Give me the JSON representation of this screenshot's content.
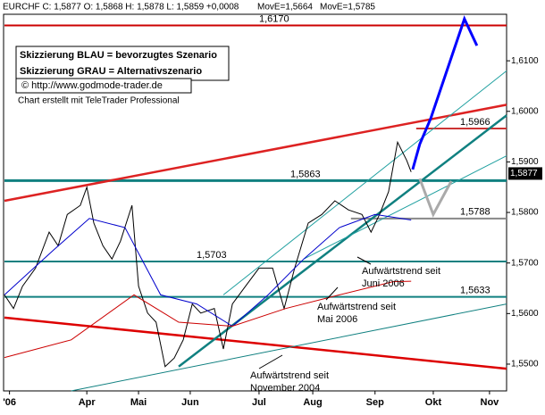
{
  "chart_data": {
    "type": "line",
    "header": {
      "symbol": "EURCHF C: 1,5877 O: 1,5868 H: 1,5878 L: 1,5859 +0,0008",
      "ma1": "MovE=1,5664",
      "ma2": "MovE=1,5785",
      "ma1_color": "#ff0000",
      "ma2_color": "#0000ff"
    },
    "legend_box": [
      "Skizzierung BLAU = bevorzugtes Szenario",
      "Skizzierung GRAU = Alternativszenario"
    ],
    "url": "© http://www.godmode-trader.de",
    "credit": "Chart erstellt mit TeleTrader Professional",
    "current": {
      "value": 1.5877,
      "label": "1,5877"
    },
    "xlim": [
      0,
      100
    ],
    "ylim": [
      1.5447,
      1.6192
    ],
    "xticks": [
      {
        "value": 1,
        "label": "'06"
      },
      {
        "value": 16.4,
        "label": "Apr"
      },
      {
        "value": 26.7,
        "label": "Mai"
      },
      {
        "value": 37,
        "label": "Jun"
      },
      {
        "value": 50.7,
        "label": "Jul"
      },
      {
        "value": 61.4,
        "label": "Aug"
      },
      {
        "value": 73.8,
        "label": "Sep"
      },
      {
        "value": 85.4,
        "label": "Okt"
      },
      {
        "value": 96.6,
        "label": "Nov"
      }
    ],
    "yticks": [
      {
        "value": 1.55,
        "label": "1,5500"
      },
      {
        "value": 1.56,
        "label": "1,5600"
      },
      {
        "value": 1.57,
        "label": "1,5700"
      },
      {
        "value": 1.58,
        "label": "1,5800"
      },
      {
        "value": 1.59,
        "label": "1,5900"
      },
      {
        "value": 1.6,
        "label": "1,6000"
      },
      {
        "value": 1.61,
        "label": "1,6100"
      }
    ],
    "series": [
      {
        "name": "EURCHF",
        "color": "#000000",
        "x": [
          0,
          1.8,
          3.6,
          6.2,
          8.9,
          10.7,
          12.5,
          15.1,
          16.4,
          17.8,
          19.6,
          21.4,
          23.1,
          25.4,
          26.7,
          28.5,
          30.2,
          32.0,
          33.8,
          35.6,
          37.4,
          39.1,
          41.8,
          43.6,
          45.4,
          48.0,
          50.7,
          53.4,
          55.7,
          57.8,
          60.5,
          63.2,
          65.8,
          68.5,
          71.2,
          73.0,
          74.7,
          76.5,
          78.3,
          80.1,
          81.0
        ],
        "values": [
          1.5637,
          1.561,
          1.5654,
          1.569,
          1.5761,
          1.5734,
          1.5796,
          1.5814,
          1.585,
          1.5779,
          1.5734,
          1.5708,
          1.5743,
          1.5814,
          1.5654,
          1.5601,
          1.5583,
          1.5495,
          1.5512,
          1.5548,
          1.5619,
          1.5601,
          1.561,
          1.553,
          1.5619,
          1.5654,
          1.569,
          1.569,
          1.561,
          1.569,
          1.5779,
          1.5796,
          1.5823,
          1.5805,
          1.5796,
          1.5761,
          1.5796,
          1.5841,
          1.5939,
          1.5903,
          1.588
        ]
      },
      {
        "name": "MovE=1,5785",
        "color": "#0000cc",
        "x": [
          0,
          9.8,
          16.9,
          24.0,
          31.1,
          38.3,
          45.4,
          52.5,
          59.6,
          66.7,
          73.8,
          81.0
        ],
        "values": [
          1.5637,
          1.5726,
          1.5788,
          1.577,
          1.5637,
          1.5619,
          1.5575,
          1.5637,
          1.5708,
          1.577,
          1.5796,
          1.5785
        ]
      },
      {
        "name": "MovE=1,5664",
        "color": "#cc0000",
        "x": [
          0,
          13.3,
          25.8,
          34.7,
          45.4,
          56.0,
          66.7,
          77.4,
          81.0
        ],
        "values": [
          1.5513,
          1.5548,
          1.5637,
          1.5583,
          1.5575,
          1.561,
          1.5637,
          1.5663,
          1.5664
        ]
      }
    ],
    "levels": [
      {
        "value": 1.617,
        "label": "1,6170",
        "color": "#cc0000",
        "x": [
          0,
          100
        ]
      },
      {
        "value": 1.5966,
        "label": "1,5966",
        "color": "#cc3333",
        "x": [
          82,
          100
        ]
      },
      {
        "value": 1.5863,
        "label": "1,5863",
        "color": "#108080",
        "x": [
          0,
          100
        ]
      },
      {
        "value": 1.5788,
        "label": "1,5788",
        "color": "#888888",
        "x": [
          69,
          100
        ]
      },
      {
        "value": 1.5703,
        "label": "1,5703",
        "color": "#108080",
        "x": [
          0,
          100
        ]
      },
      {
        "value": 1.5633,
        "label": "1,5633",
        "color": "#108080",
        "x": [
          0,
          100
        ]
      }
    ],
    "trendlines": [
      {
        "color": "#dd2222",
        "x": [
          0,
          100
        ],
        "y": [
          1.5823,
          1.6013
        ]
      },
      {
        "color": "#dd0000",
        "x": [
          0,
          100
        ],
        "y": [
          1.5592,
          1.5491
        ]
      },
      {
        "color": "#108080",
        "x": [
          13.3,
          100
        ],
        "y": [
          1.5447,
          1.5619
        ]
      },
      {
        "color": "#108080",
        "x": [
          34.7,
          100
        ],
        "y": [
          1.5495,
          1.5992
        ]
      },
      {
        "color": "#20a0a0",
        "x": [
          43.6,
          100
        ],
        "y": [
          1.5637,
          1.608
        ]
      },
      {
        "color": "#20a0a0",
        "x": [
          59.6,
          100
        ],
        "y": [
          1.5708,
          1.5912
        ]
      }
    ],
    "scenarios": [
      {
        "color": "#0000ff",
        "x": [
          81.3,
          82.7,
          84.9,
          91.6,
          94.1
        ],
        "y": [
          1.5885,
          1.5935,
          1.5986,
          1.6183,
          1.613
        ]
      },
      {
        "color": "#aaaaaa",
        "x": [
          82.7,
          85.4,
          89.0
        ],
        "y": [
          1.5867,
          1.5796,
          1.5862
        ]
      }
    ],
    "annotations": [
      "Aufwärtstrend seit Juni 2006",
      "Aufwärtstrend seit Mai 2006",
      "Aufwärtstrend seit November 2004"
    ]
  }
}
